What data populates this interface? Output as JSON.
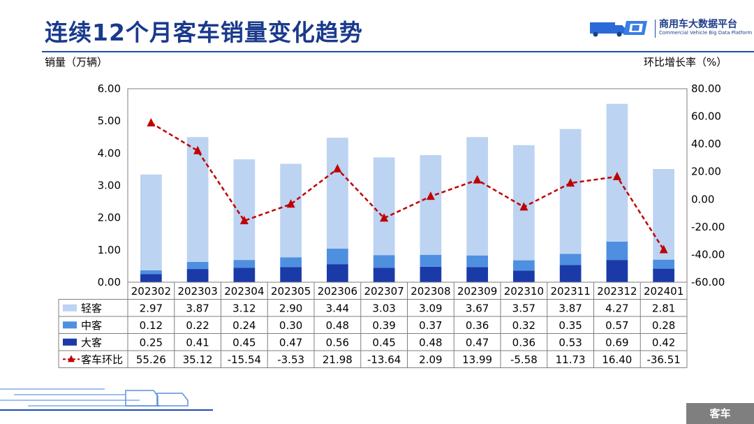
{
  "header": {
    "title": "连续12个月客车销量变化趋势",
    "logo_cn": "商用车大数据平台",
    "logo_en": "Commercial Vehicle Big Data Platform"
  },
  "axes": {
    "left_title": "销量（万辆）",
    "right_title": "环比增长率（%）"
  },
  "footer": {
    "tag": "客车"
  },
  "colors": {
    "light": "#bcd3f1",
    "medium": "#4f8fe0",
    "heavy": "#1a3aa8",
    "line": "#c00000",
    "title": "#1a3a8c"
  },
  "chart_data": {
    "type": "bar",
    "stacked": true,
    "categories": [
      "202302",
      "202303",
      "202304",
      "202305",
      "202306",
      "202307",
      "202308",
      "202309",
      "202310",
      "202311",
      "202312",
      "202401"
    ],
    "series": [
      {
        "name": "大客",
        "type": "bar",
        "values": [
          0.25,
          0.41,
          0.45,
          0.47,
          0.56,
          0.45,
          0.48,
          0.47,
          0.36,
          0.53,
          0.69,
          0.42
        ]
      },
      {
        "name": "中客",
        "type": "bar",
        "values": [
          0.12,
          0.22,
          0.24,
          0.3,
          0.48,
          0.39,
          0.37,
          0.36,
          0.32,
          0.35,
          0.57,
          0.28
        ]
      },
      {
        "name": "轻客",
        "type": "bar",
        "values": [
          2.97,
          3.87,
          3.12,
          2.9,
          3.44,
          3.03,
          3.09,
          3.67,
          3.57,
          3.87,
          4.27,
          2.81
        ]
      },
      {
        "name": "客车环比",
        "type": "line",
        "axis": "right",
        "values": [
          55.26,
          35.12,
          -15.54,
          -3.53,
          21.98,
          -13.64,
          2.09,
          13.99,
          -5.58,
          11.73,
          16.4,
          -36.51
        ]
      }
    ],
    "y_left": {
      "min": 0,
      "max": 6,
      "ticks": [
        "0.00",
        "1.00",
        "2.00",
        "3.00",
        "4.00",
        "5.00",
        "6.00"
      ]
    },
    "y_right": {
      "min": -60,
      "max": 80,
      "ticks": [
        "-60.00",
        "-40.00",
        "-20.00",
        "0.00",
        "20.00",
        "40.00",
        "60.00",
        "80.00"
      ]
    },
    "table_rows": [
      {
        "label": "轻客",
        "series": "轻客",
        "values": [
          "2.97",
          "3.87",
          "3.12",
          "2.90",
          "3.44",
          "3.03",
          "3.09",
          "3.67",
          "3.57",
          "3.87",
          "4.27",
          "2.81"
        ]
      },
      {
        "label": "中客",
        "series": "中客",
        "values": [
          "0.12",
          "0.22",
          "0.24",
          "0.30",
          "0.48",
          "0.39",
          "0.37",
          "0.36",
          "0.32",
          "0.35",
          "0.57",
          "0.28"
        ]
      },
      {
        "label": "大客",
        "series": "大客",
        "values": [
          "0.25",
          "0.41",
          "0.45",
          "0.47",
          "0.56",
          "0.45",
          "0.48",
          "0.47",
          "0.36",
          "0.53",
          "0.69",
          "0.42"
        ]
      },
      {
        "label": "客车环比",
        "series": "客车环比",
        "values": [
          "55.26",
          "35.12",
          "-15.54",
          "-3.53",
          "21.98",
          "-13.64",
          "2.09",
          "13.99",
          "-5.58",
          "11.73",
          "16.40",
          "-36.51"
        ]
      }
    ]
  }
}
